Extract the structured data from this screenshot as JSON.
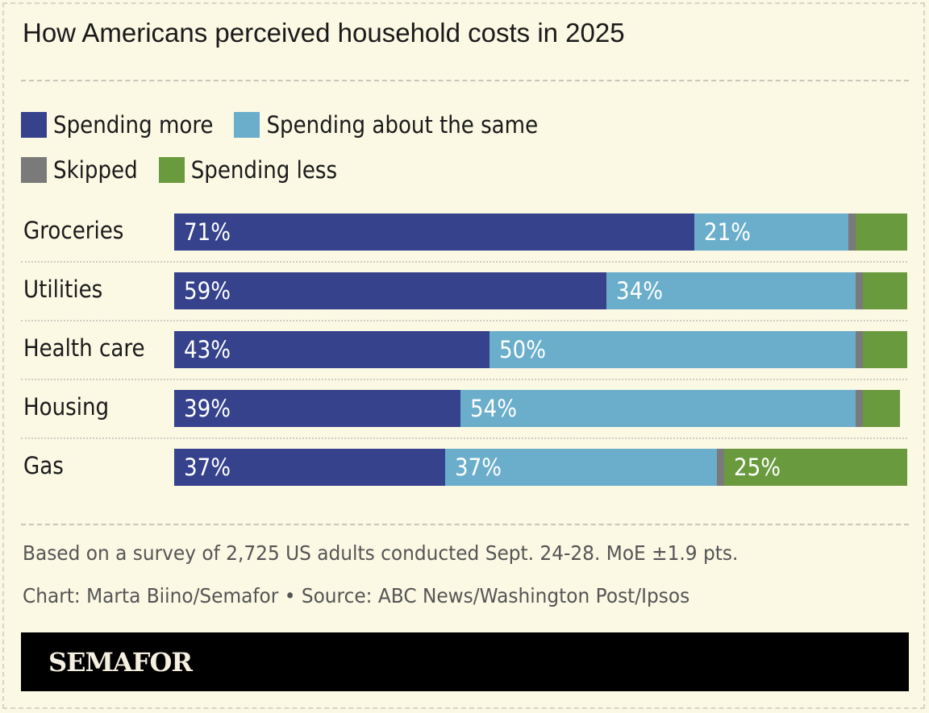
{
  "chart_data": {
    "type": "bar",
    "orientation": "horizontal",
    "stacked": true,
    "title": "How Americans perceived household costs in 2025",
    "categories": [
      "Groceries",
      "Utilities",
      "Health care",
      "Housing",
      "Gas"
    ],
    "series": [
      {
        "name": "Spending more",
        "color": "#36428c",
        "values": [
          71,
          59,
          43,
          39,
          37
        ]
      },
      {
        "name": "Spending about the same",
        "color": "#6aaecb",
        "values": [
          21,
          34,
          50,
          54,
          37
        ]
      },
      {
        "name": "Skipped",
        "color": "#7a7a7a",
        "values": [
          1,
          1,
          1,
          1,
          1
        ]
      },
      {
        "name": "Spending less",
        "color": "#6a9a3e",
        "values": [
          7,
          6,
          6,
          5,
          25
        ]
      }
    ],
    "value_unit": "%",
    "xlim": [
      0,
      100
    ],
    "legend_position": "top",
    "grid": false
  },
  "notes": {
    "survey": "Based on a survey of 2,725 US adults conducted Sept. 24-28. MoE ±1.9 pts.",
    "credit": "Chart: Marta Biino/Semafor • Source: ABC News/Washington Post/Ipsos"
  },
  "brand": {
    "logo_text": "SEMAFOR"
  },
  "colors": {
    "background": "#fbf8e4"
  }
}
